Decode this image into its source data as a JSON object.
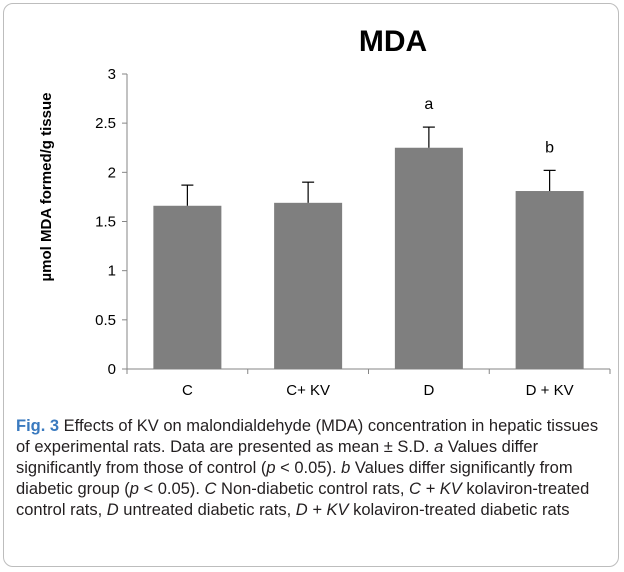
{
  "chart_data": {
    "type": "bar",
    "title": "MDA",
    "ylabel": "µmol MDA formed/g tissue",
    "xlabel": "",
    "categories": [
      "C",
      "C+ KV",
      "D",
      "D + KV"
    ],
    "values": [
      1.66,
      1.69,
      2.25,
      1.81
    ],
    "errors": [
      0.21,
      0.21,
      0.21,
      0.21
    ],
    "annotations": [
      "",
      "",
      "a",
      "b"
    ],
    "ylim": [
      0,
      3
    ],
    "yticks": [
      "0",
      "0.5",
      "1",
      "1.5",
      "2",
      "2.5",
      "3"
    ],
    "grid": false,
    "bar_color": "#7f7f7f"
  },
  "caption": {
    "fig_label": "Fig. 3",
    "segments": [
      {
        "t": " Effects of KV on malondialdehyde (MDA) concentration in hepatic tissues of experimental rats. Data are presented as mean ± S.D. ",
        "i": false
      },
      {
        "t": "a",
        "i": true
      },
      {
        "t": " Values differ significantly from those of control (",
        "i": false
      },
      {
        "t": "p",
        "i": true
      },
      {
        "t": " < 0.05). ",
        "i": false
      },
      {
        "t": "b",
        "i": true
      },
      {
        "t": " Values differ significantly from diabetic group (",
        "i": false
      },
      {
        "t": "p",
        "i": true
      },
      {
        "t": " < 0.05). ",
        "i": false
      },
      {
        "t": "C",
        "i": true
      },
      {
        "t": " Non-diabetic control rats, ",
        "i": false
      },
      {
        "t": "C + KV",
        "i": true
      },
      {
        "t": " kolaviron-treated control rats, ",
        "i": false
      },
      {
        "t": "D",
        "i": true
      },
      {
        "t": " untreated diabetic rats, ",
        "i": false
      },
      {
        "t": "D + KV",
        "i": true
      },
      {
        "t": " kolaviron-treated diabetic rats",
        "i": false
      }
    ]
  }
}
